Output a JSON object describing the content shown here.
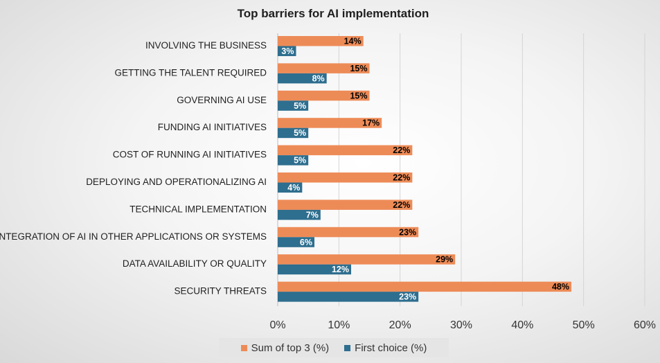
{
  "chart_data": {
    "type": "bar",
    "orientation": "horizontal",
    "title": "Top barriers for AI implementation",
    "categories": [
      "INVOLVING THE BUSINESS",
      "GETTING THE TALENT REQUIRED",
      "GOVERNING AI USE",
      "FUNDING AI INITIATIVES",
      "COST OF RUNNING AI INITIATIVES",
      "DEPLOYING AND OPERATIONALIZING AI",
      "TECHNICAL IMPLEMENTATION",
      "INTEGRATION OF AI IN OTHER APPLICATIONS OR SYSTEMS",
      "DATA AVAILABILITY OR QUALITY",
      "SECURITY THREATS"
    ],
    "series": [
      {
        "name": "Sum of top 3 (%)",
        "color": "#ED8B57",
        "label_color": "#000000",
        "values": [
          14,
          15,
          15,
          17,
          22,
          22,
          22,
          23,
          29,
          48
        ]
      },
      {
        "name": "First choice (%)",
        "color": "#2E6E8E",
        "label_color": "#ffffff",
        "values": [
          3,
          8,
          5,
          5,
          5,
          4,
          7,
          6,
          12,
          23
        ]
      }
    ],
    "data_labels": [
      [
        "14%",
        "15%",
        "15%",
        "17%",
        "22%",
        "22%",
        "22%",
        "23%",
        "29%",
        "48%"
      ],
      [
        "3%",
        "8%",
        "5%",
        "5%",
        "5%",
        "4%",
        "7%",
        "6%",
        "12%",
        "23%"
      ]
    ],
    "xlim": [
      0,
      60
    ],
    "xticks": [
      0,
      10,
      20,
      30,
      40,
      50,
      60
    ],
    "xtick_labels": [
      "0%",
      "10%",
      "20%",
      "30%",
      "40%",
      "50%",
      "60%"
    ],
    "grid": true,
    "legend_position": "bottom"
  },
  "legend": {
    "items": [
      {
        "label": "Sum of top 3 (%)",
        "color": "#ED8B57"
      },
      {
        "label": "First choice (%)",
        "color": "#2E6E8E"
      }
    ]
  }
}
